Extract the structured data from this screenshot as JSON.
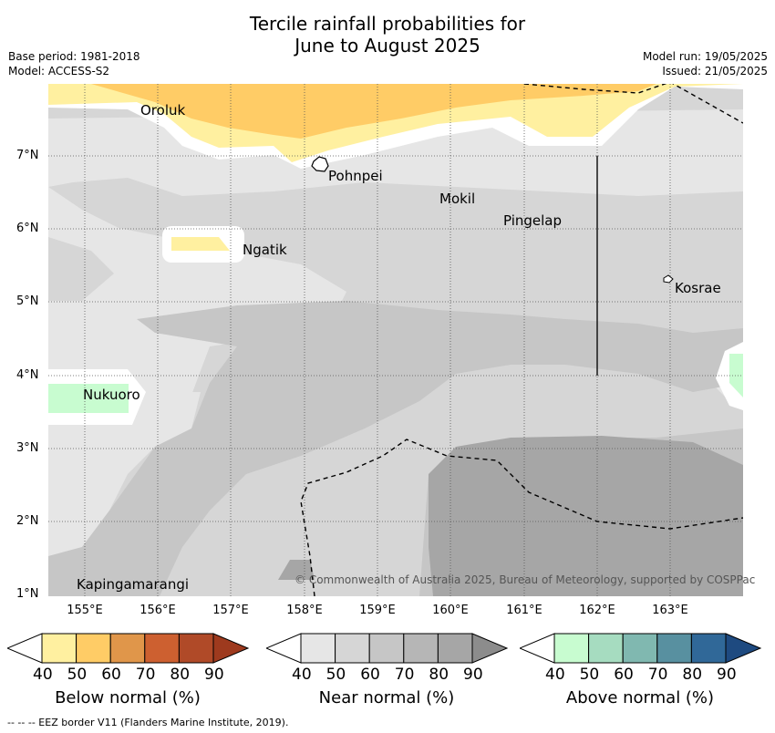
{
  "title_line1": "Tercile rainfall probabilities for",
  "title_line2": "June to August 2025",
  "base_period": "Base period: 1981-2018",
  "model": "Model: ACCESS-S2",
  "model_run": "Model run: 19/05/2025",
  "issued": "Issued: 21/05/2025",
  "copyright": "© Commonwealth of Australia 2025, Bureau of Meteorology, supported by COSPPac",
  "footer": "--  --  -- EEZ border V11 (Flanders Marine Institute, 2019).",
  "lat_labels": [
    "7°N",
    "6°N",
    "5°N",
    "4°N",
    "3°N",
    "2°N",
    "1°N"
  ],
  "lon_labels": [
    "155°E",
    "156°E",
    "157°E",
    "158°E",
    "159°E",
    "160°E",
    "161°E",
    "162°E",
    "163°E"
  ],
  "places": [
    "Oroluk",
    "Pohnpei",
    "Mokil",
    "Pingelap",
    "Ngatik",
    "Kosrae",
    "Nukuoro",
    "Kapingamarangi"
  ],
  "colorbars": [
    {
      "title": "Below normal (%)",
      "ticks": [
        "40",
        "50",
        "60",
        "70",
        "80",
        "90"
      ],
      "colors": [
        "#fff0a0",
        "#ffcc66",
        "#e0964a",
        "#cd6030",
        "#b04a28",
        "#9e3a1e"
      ]
    },
    {
      "title": "Near normal (%)",
      "ticks": [
        "40",
        "50",
        "60",
        "70",
        "80",
        "90"
      ],
      "colors": [
        "#e6e6e6",
        "#d6d6d6",
        "#c6c6c6",
        "#b6b6b6",
        "#a6a6a6",
        "#8c8c8c"
      ]
    },
    {
      "title": "Above normal (%)",
      "ticks": [
        "40",
        "50",
        "60",
        "70",
        "80",
        "90"
      ],
      "colors": [
        "#c8fcd0",
        "#a6dcc0",
        "#80b8b0",
        "#5890a0",
        "#306898",
        "#1e4a80"
      ]
    }
  ]
}
